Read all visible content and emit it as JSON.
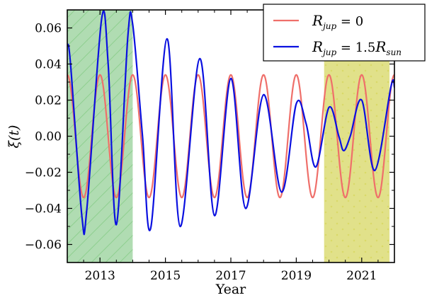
{
  "chart_data": {
    "type": "line",
    "title": "",
    "xlabel": "Year",
    "ylabel": "ξ(t)",
    "xlim": [
      2012,
      2022
    ],
    "ylim": [
      -0.07,
      0.07
    ],
    "x_ticks": [
      2013,
      2015,
      2017,
      2019,
      2021
    ],
    "x_tick_labels": [
      "2013",
      "2015",
      "2017",
      "2019",
      "2021"
    ],
    "y_ticks": [
      -0.06,
      -0.04,
      -0.02,
      0.0,
      0.02,
      0.04,
      0.06
    ],
    "y_tick_labels": [
      "−0.06",
      "−0.04",
      "−0.02",
      "0.00",
      "0.02",
      "0.04",
      "0.06"
    ],
    "grid": false,
    "legend_position": "top-right",
    "shaded_regions": [
      {
        "x": [
          2012,
          2014
        ],
        "color": "#6fbf73",
        "hatch": "diagonal-lines"
      },
      {
        "x": [
          2019.85,
          2021.85
        ],
        "color": "#c9c92a",
        "hatch": "dots"
      }
    ],
    "series": [
      {
        "name": "R_jup = 0",
        "legend_main": "R",
        "legend_sub": "jup",
        "legend_rest": " = 0",
        "color": "#ef6f6a",
        "period": 1.0,
        "amplitude": 0.034,
        "first_peak": 2013.0,
        "x": [
          2012.0,
          2012.5,
          2013.0,
          2013.5,
          2014.0,
          2014.5,
          2015.0,
          2015.5,
          2016.0,
          2016.5,
          2017.0,
          2017.5,
          2018.0,
          2018.5,
          2019.0,
          2019.5,
          2020.0,
          2020.5,
          2021.0,
          2021.5,
          2022.0
        ],
        "y": [
          0.034,
          -0.034,
          0.034,
          -0.034,
          0.034,
          -0.034,
          0.034,
          -0.034,
          0.034,
          -0.034,
          0.034,
          -0.034,
          0.034,
          -0.034,
          0.034,
          -0.034,
          0.034,
          -0.034,
          0.034,
          -0.034,
          0.034
        ]
      },
      {
        "name": "R_jup = 1.5 R_sun",
        "legend_main": "R",
        "legend_sub": "jup",
        "legend_rest": " = 1.5",
        "legend_main2": "R",
        "legend_sub2": "sun",
        "color": "#0a10e0",
        "x": [
          2012.0,
          2012.1,
          2012.45,
          2012.6,
          2013.05,
          2013.25,
          2013.5,
          2013.85,
          2014.0,
          2014.3,
          2014.55,
          2015.05,
          2015.45,
          2016.05,
          2016.5,
          2017.0,
          2017.45,
          2018.0,
          2018.55,
          2019.0,
          2019.3,
          2019.6,
          2020.0,
          2020.3,
          2020.45,
          2020.65,
          2021.0,
          2021.4,
          2021.9,
          2022.0
        ],
        "y": [
          0.051,
          0.04,
          -0.045,
          -0.04,
          0.065,
          0.04,
          -0.049,
          0.055,
          0.062,
          0.0,
          -0.051,
          0.054,
          -0.05,
          0.043,
          -0.044,
          0.032,
          -0.04,
          0.023,
          -0.031,
          0.018,
          0.007,
          -0.017,
          0.016,
          0.0,
          -0.008,
          0.0,
          0.02,
          -0.019,
          0.028,
          0.027
        ]
      }
    ]
  }
}
